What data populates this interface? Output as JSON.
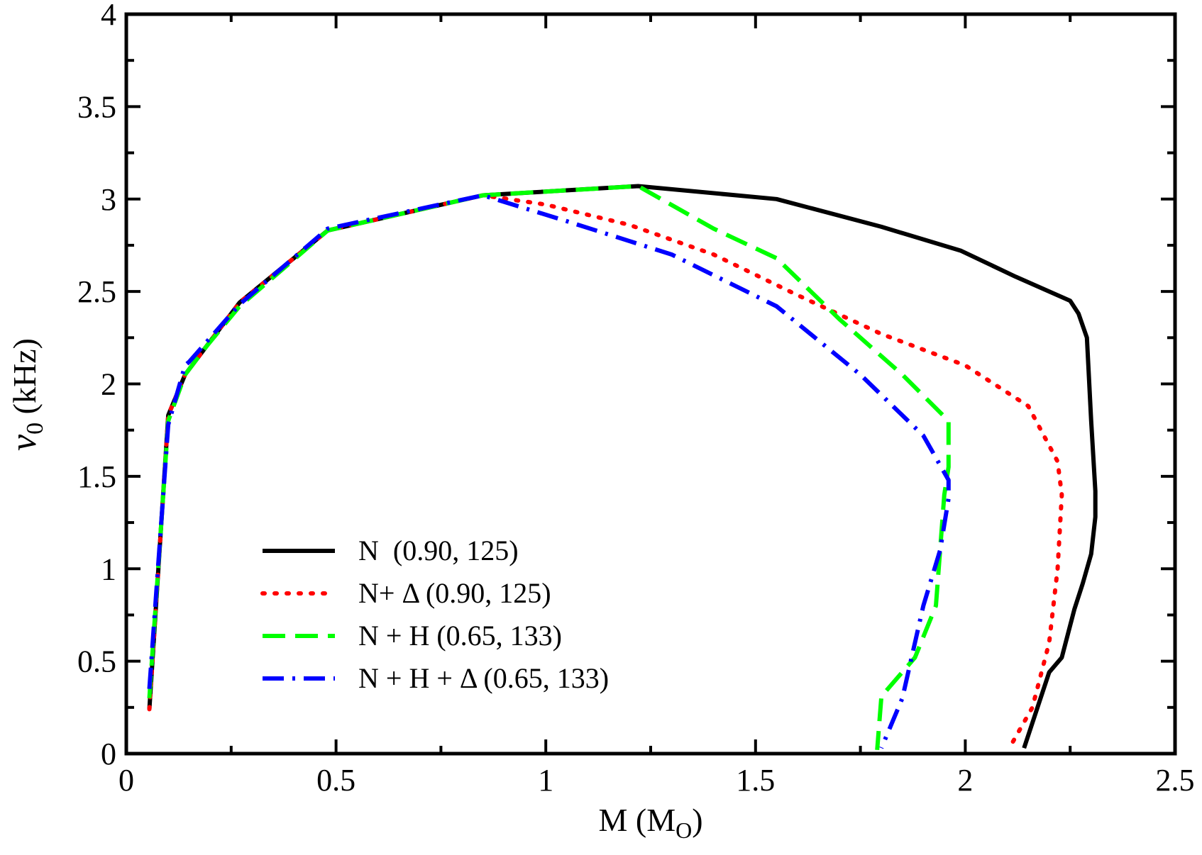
{
  "chart_data": {
    "type": "line",
    "title": "",
    "xlabel": "M (M",
    "xlabel_sub": "O",
    "xlabel_close": ")",
    "ylabel_symbol": "ν",
    "ylabel_sub": "0",
    "ylabel_rest": " (kHz)",
    "xlim": [
      0,
      2.5
    ],
    "ylim": [
      0,
      4
    ],
    "xticks": [
      0,
      0.5,
      1,
      1.5,
      2,
      2.5
    ],
    "xtick_labels": [
      "0",
      "0.5",
      "1",
      "1.5",
      "2",
      "2.5"
    ],
    "yticks": [
      0,
      0.5,
      1,
      1.5,
      2,
      2.5,
      3,
      3.5,
      4
    ],
    "ytick_labels": [
      "0",
      "0.5",
      "1",
      "1.5",
      "2",
      "2.5",
      "3",
      "3.5",
      "4"
    ],
    "legend_position": "bottom-left",
    "series": [
      {
        "name": "N  (0.90, 125)",
        "color": "#000000",
        "style": "solid",
        "x": [
          0.055,
          0.1,
          0.14,
          0.19,
          0.27,
          0.48,
          0.85,
          1.22,
          1.55,
          1.8,
          1.99,
          2.12,
          2.25,
          2.27,
          2.29,
          2.3,
          2.31,
          2.31,
          2.3,
          2.28,
          2.26,
          2.23,
          2.2,
          2.14
        ],
        "y": [
          0.24,
          1.83,
          2.05,
          2.2,
          2.44,
          2.83,
          3.02,
          3.07,
          3.0,
          2.85,
          2.72,
          2.58,
          2.45,
          2.38,
          2.25,
          1.8,
          1.42,
          1.28,
          1.08,
          0.92,
          0.78,
          0.52,
          0.44,
          0.03
        ]
      },
      {
        "name": "N+ Δ (0.90, 125)",
        "color": "#ff0000",
        "style": "dotted",
        "x": [
          0.055,
          0.1,
          0.14,
          0.19,
          0.27,
          0.48,
          0.85,
          1.0,
          1.2,
          1.4,
          1.6,
          1.8,
          2.0,
          2.15,
          2.22,
          2.23,
          2.22,
          2.2,
          2.16,
          2.11
        ],
        "y": [
          0.24,
          1.83,
          2.05,
          2.2,
          2.44,
          2.83,
          3.02,
          2.97,
          2.86,
          2.7,
          2.48,
          2.27,
          2.1,
          1.88,
          1.58,
          1.4,
          1.0,
          0.6,
          0.25,
          0.05
        ]
      },
      {
        "name": "N + H (0.65, 133)",
        "color": "#00ff00",
        "style": "dashed",
        "x": [
          0.055,
          0.1,
          0.14,
          0.19,
          0.27,
          0.48,
          0.85,
          1.22,
          1.4,
          1.55,
          1.7,
          1.85,
          1.96,
          1.96,
          1.95,
          1.94,
          1.93,
          1.88,
          1.8,
          1.79
        ],
        "y": [
          0.3,
          1.8,
          2.05,
          2.2,
          2.42,
          2.83,
          3.02,
          3.07,
          2.84,
          2.68,
          2.35,
          2.05,
          1.8,
          1.55,
          1.4,
          1.1,
          0.8,
          0.52,
          0.31,
          0.02
        ]
      },
      {
        "name": "N + H + Δ (0.65, 133)",
        "color": "#0000ff",
        "style": "dashdot",
        "x": [
          0.055,
          0.1,
          0.14,
          0.15,
          0.27,
          0.48,
          0.85,
          1.05,
          1.3,
          1.55,
          1.75,
          1.9,
          1.96,
          1.96,
          1.94,
          1.9,
          1.85,
          1.8
        ],
        "y": [
          0.35,
          1.78,
          2.1,
          2.12,
          2.43,
          2.84,
          3.02,
          2.88,
          2.7,
          2.42,
          2.05,
          1.72,
          1.48,
          1.38,
          1.1,
          0.8,
          0.3,
          0.03
        ]
      }
    ]
  }
}
